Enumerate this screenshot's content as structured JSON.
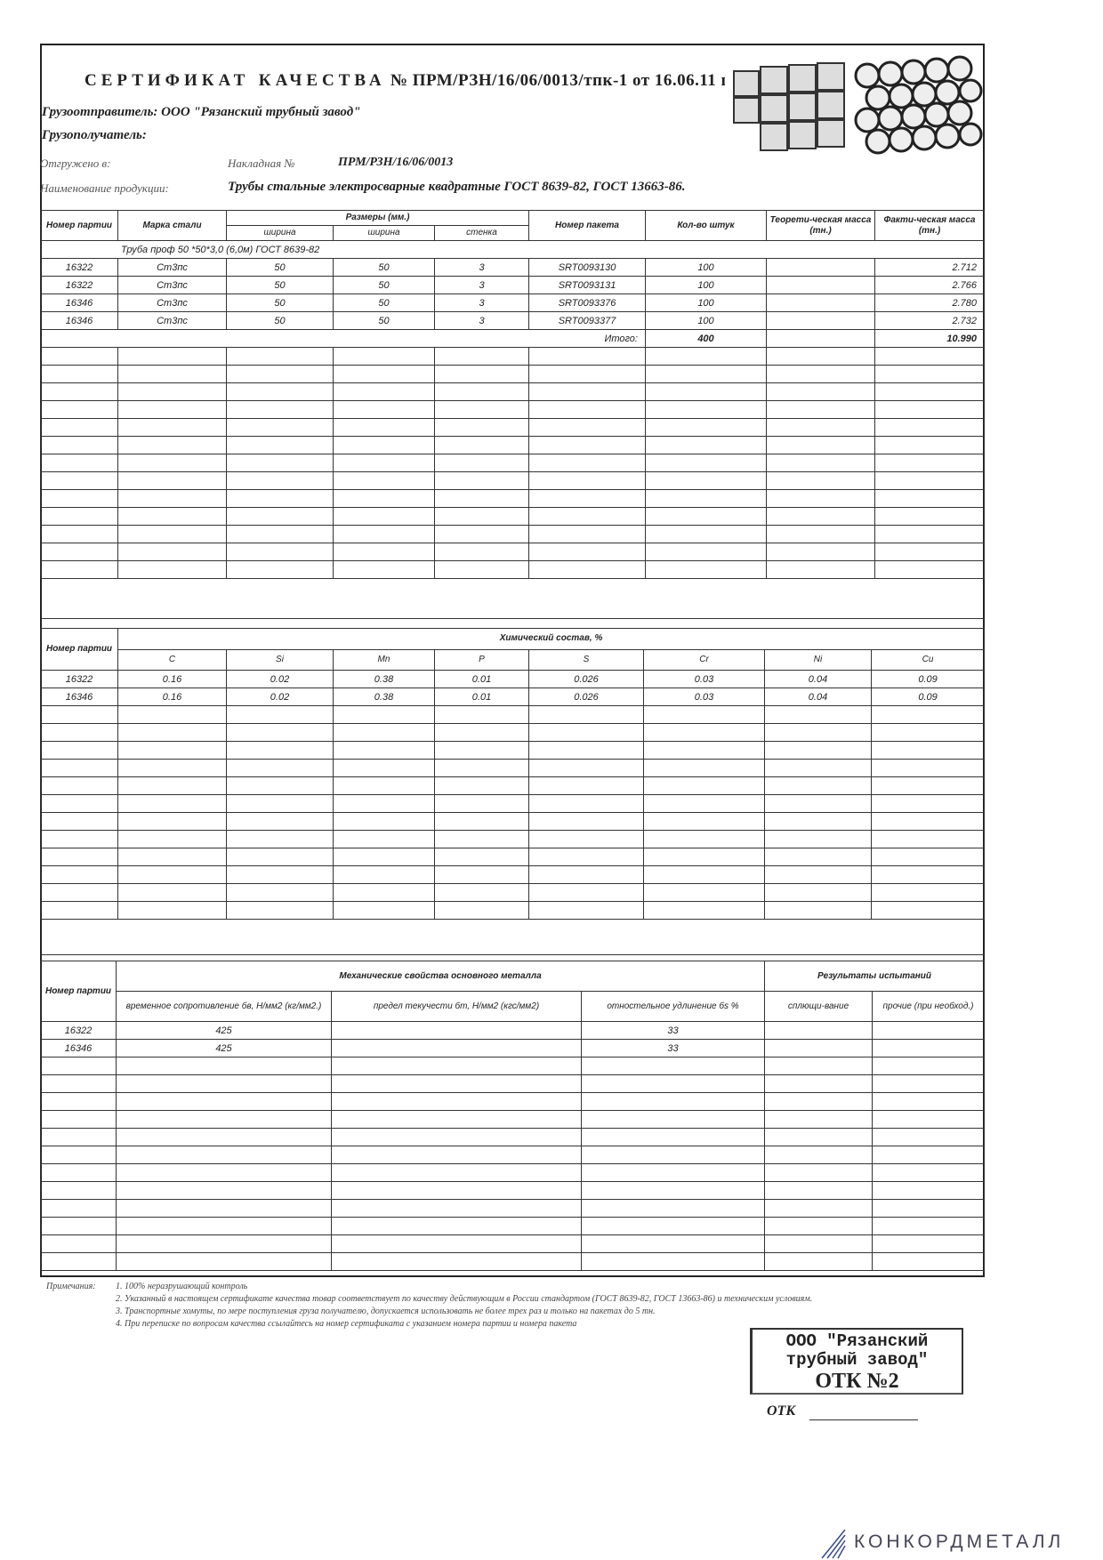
{
  "header": {
    "title_word1": "СЕРТИФИКАТ",
    "title_word2": "КАЧЕСТВА",
    "title_rest": "№ ПРМ/РЗН/16/06/0013/тпк-1 от 16.06.11 г.",
    "shipper": "Грузоотправитель: ООО \"Рязанский трубный завод\"",
    "consignee": "Грузополучатель:",
    "shipped_label": "Отгружено в:",
    "invoice_label": "Накладная №",
    "invoice_value": "ПРМ/РЗН/16/06/0013",
    "product_label": "Наименование продукции:",
    "product_value": "Трубы стальные электросварные квадратные ГОСТ 8639-82, ГОСТ 13663-86."
  },
  "table1": {
    "headers": {
      "batch": "Номер партии",
      "grade": "Марка стали",
      "sizes": "Размеры (мм.)",
      "w1": "ширина",
      "w2": "ширина",
      "wall": "стенка",
      "package": "Номер пакета",
      "qty": "Кол-во штук",
      "theor": "Теорети-ческая масса (тн.)",
      "actual": "Факти-ческая масса (тн.)"
    },
    "product_row": "Труба проф 50 *50*3,0 (6,0м) ГОСТ 8639-82",
    "rows": [
      [
        "16322",
        "Ст3пс",
        "50",
        "50",
        "3",
        "SRT0093130",
        "100",
        "",
        "2.712"
      ],
      [
        "16322",
        "Ст3пс",
        "50",
        "50",
        "3",
        "SRT0093131",
        "100",
        "",
        "2.766"
      ],
      [
        "16346",
        "Ст3пс",
        "50",
        "50",
        "3",
        "SRT0093376",
        "100",
        "",
        "2.780"
      ],
      [
        "16346",
        "Ст3пс",
        "50",
        "50",
        "3",
        "SRT0093377",
        "100",
        "",
        "2.732"
      ]
    ],
    "total_label": "Итого:",
    "total_qty": "400",
    "total_mass": "10.990"
  },
  "table2": {
    "batch": "Номер партии",
    "title": "Химический состав, %",
    "elements": [
      "C",
      "Si",
      "Mn",
      "P",
      "S",
      "Cr",
      "Ni",
      "Cu"
    ],
    "rows": [
      [
        "16322",
        "0.16",
        "0.02",
        "0.38",
        "0.01",
        "0.026",
        "0.03",
        "0.04",
        "0.09"
      ],
      [
        "16346",
        "0.16",
        "0.02",
        "0.38",
        "0.01",
        "0.026",
        "0.03",
        "0.04",
        "0.09"
      ]
    ]
  },
  "table3": {
    "batch": "Номер партии",
    "mech_title": "Механические свойства основного металла",
    "results_title": "Результаты испытаний",
    "cols": [
      "временное сопротивление бв, Н/мм2 (кг/мм2.)",
      "предел текучести бт, Н/мм2 (кгс/мм2)",
      "отностельное удлинение бs %",
      "сплющи-вание",
      "прочие (при необход.)"
    ],
    "rows": [
      [
        "16322",
        "425",
        "",
        "33",
        "",
        ""
      ],
      [
        "16346",
        "425",
        "",
        "33",
        "",
        ""
      ]
    ]
  },
  "notes": {
    "label": "Примечания:",
    "items": [
      "1. 100% неразрушающий контроль",
      "2. Указанный в настоящем сертификате качества товар соответствует по качеству действующим в России стандартом (ГОСТ 8639-82, ГОСТ 13663-86) и техническим условиям.",
      "3. Транспортные хомуты, по мере поступления груза получателю, допускается использовать не более трех раз и только на пакетах до 5 тн.",
      "4. При переписке по вопросам качества ссылайтесь на номер сертификата с указанием номера партии и номера пакета"
    ]
  },
  "stamp": {
    "line1": "ООО \"Рязанский",
    "line2": "трубный завод\"",
    "line3": "ОТК №2"
  },
  "signature": {
    "label": "ОТК"
  },
  "watermark": "КОНКОРДМЕТАЛЛ"
}
